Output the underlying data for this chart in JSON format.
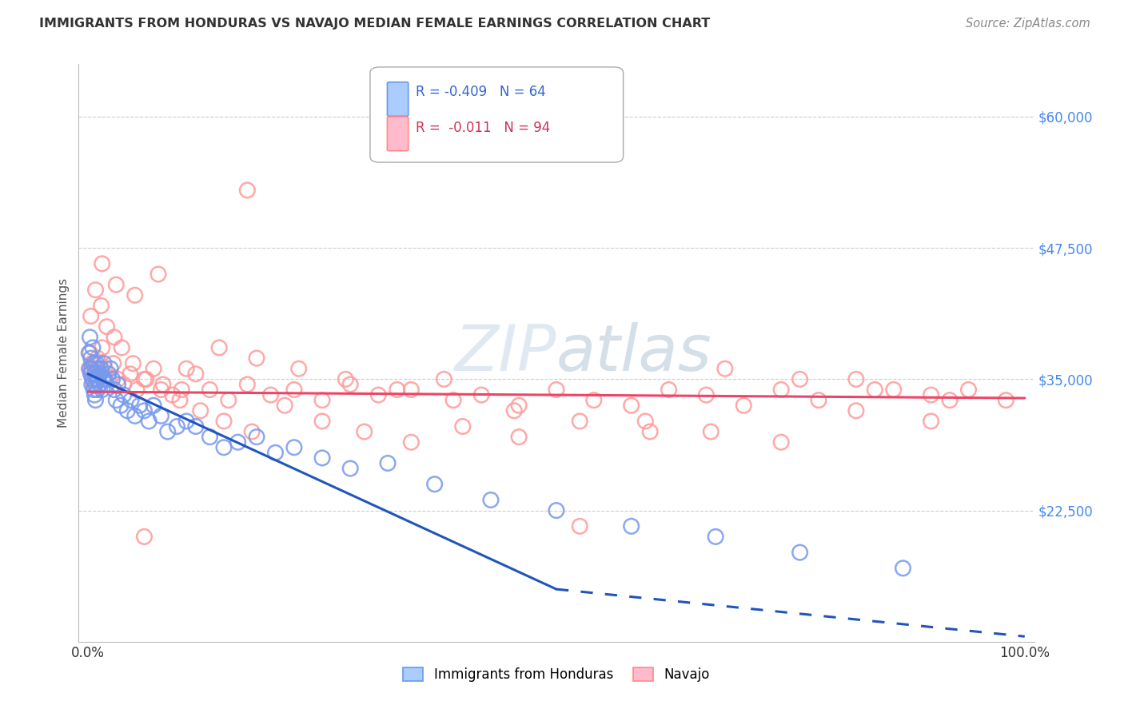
{
  "title": "IMMIGRANTS FROM HONDURAS VS NAVAJO MEDIAN FEMALE EARNINGS CORRELATION CHART",
  "source": "Source: ZipAtlas.com",
  "ylabel": "Median Female Earnings",
  "xlim": [
    -0.01,
    1.01
  ],
  "ylim": [
    10000,
    65000
  ],
  "yticks": [
    22500,
    35000,
    47500,
    60000
  ],
  "ytick_labels": [
    "$22,500",
    "$35,000",
    "$47,500",
    "$60,000"
  ],
  "xtick_positions": [
    0.0,
    0.25,
    0.5,
    0.75,
    1.0
  ],
  "xtick_labels": [
    "0.0%",
    "",
    "",
    "",
    "100.0%"
  ],
  "background_color": "#ffffff",
  "grid_color": "#cccccc",
  "series1_color": "#7799ee",
  "series2_color": "#ff9999",
  "series1_label": "Immigrants from Honduras",
  "series2_label": "Navajo",
  "R1": "-0.409",
  "N1": "64",
  "R2": "-0.011",
  "N2": "94",
  "trend1_color": "#2255bb",
  "trend2_color": "#ee4466",
  "ytick_color": "#4488ee",
  "series1_x": [
    0.001,
    0.002,
    0.002,
    0.003,
    0.003,
    0.004,
    0.004,
    0.005,
    0.005,
    0.006,
    0.006,
    0.007,
    0.007,
    0.008,
    0.008,
    0.009,
    0.009,
    0.01,
    0.01,
    0.011,
    0.012,
    0.013,
    0.014,
    0.015,
    0.016,
    0.017,
    0.018,
    0.02,
    0.022,
    0.024,
    0.026,
    0.028,
    0.03,
    0.032,
    0.035,
    0.038,
    0.042,
    0.046,
    0.05,
    0.055,
    0.06,
    0.065,
    0.07,
    0.078,
    0.085,
    0.095,
    0.105,
    0.115,
    0.13,
    0.145,
    0.16,
    0.18,
    0.2,
    0.22,
    0.25,
    0.28,
    0.32,
    0.37,
    0.43,
    0.5,
    0.58,
    0.67,
    0.76,
    0.87
  ],
  "series1_y": [
    37500,
    39000,
    36000,
    37000,
    35500,
    36000,
    34500,
    35000,
    38000,
    36500,
    34000,
    33500,
    35500,
    34500,
    33000,
    36500,
    35000,
    34000,
    36000,
    35000,
    34500,
    35500,
    36000,
    34000,
    35000,
    36500,
    35000,
    34500,
    35500,
    36000,
    35000,
    34000,
    33000,
    34500,
    32500,
    33500,
    32000,
    33000,
    31500,
    32500,
    32000,
    31000,
    32500,
    31500,
    30000,
    30500,
    31000,
    30500,
    29500,
    28500,
    29000,
    29500,
    28000,
    28500,
    27500,
    26500,
    27000,
    25000,
    23500,
    22500,
    21000,
    20000,
    18500,
    17000
  ],
  "series2_x": [
    0.001,
    0.002,
    0.003,
    0.004,
    0.005,
    0.006,
    0.007,
    0.008,
    0.01,
    0.012,
    0.015,
    0.018,
    0.022,
    0.027,
    0.032,
    0.038,
    0.045,
    0.052,
    0.06,
    0.07,
    0.08,
    0.09,
    0.1,
    0.115,
    0.13,
    0.15,
    0.17,
    0.195,
    0.22,
    0.25,
    0.28,
    0.31,
    0.345,
    0.38,
    0.42,
    0.46,
    0.5,
    0.54,
    0.58,
    0.62,
    0.66,
    0.7,
    0.74,
    0.78,
    0.82,
    0.86,
    0.9,
    0.94,
    0.98,
    0.003,
    0.008,
    0.014,
    0.02,
    0.028,
    0.036,
    0.048,
    0.062,
    0.078,
    0.098,
    0.12,
    0.145,
    0.175,
    0.21,
    0.25,
    0.295,
    0.345,
    0.4,
    0.46,
    0.525,
    0.595,
    0.665,
    0.74,
    0.82,
    0.9,
    0.015,
    0.03,
    0.05,
    0.075,
    0.105,
    0.14,
    0.18,
    0.225,
    0.275,
    0.33,
    0.39,
    0.455,
    0.525,
    0.6,
    0.68,
    0.76,
    0.84,
    0.92,
    0.06,
    0.17
  ],
  "series2_y": [
    36000,
    37500,
    35500,
    36500,
    35000,
    34500,
    36000,
    35500,
    37000,
    36500,
    38000,
    36000,
    35000,
    36500,
    35000,
    34500,
    35500,
    34000,
    35000,
    36000,
    34500,
    33500,
    34000,
    35500,
    34000,
    33000,
    34500,
    33500,
    34000,
    33000,
    34500,
    33500,
    34000,
    35000,
    33500,
    32500,
    34000,
    33000,
    32500,
    34000,
    33500,
    32500,
    34000,
    33000,
    35000,
    34000,
    33500,
    34000,
    33000,
    41000,
    43500,
    42000,
    40000,
    39000,
    38000,
    36500,
    35000,
    34000,
    33000,
    32000,
    31000,
    30000,
    32500,
    31000,
    30000,
    29000,
    30500,
    29500,
    21000,
    31000,
    30000,
    29000,
    32000,
    31000,
    46000,
    44000,
    43000,
    45000,
    36000,
    38000,
    37000,
    36000,
    35000,
    34000,
    33000,
    32000,
    31000,
    30000,
    36000,
    35000,
    34000,
    33000,
    20000,
    53000
  ]
}
